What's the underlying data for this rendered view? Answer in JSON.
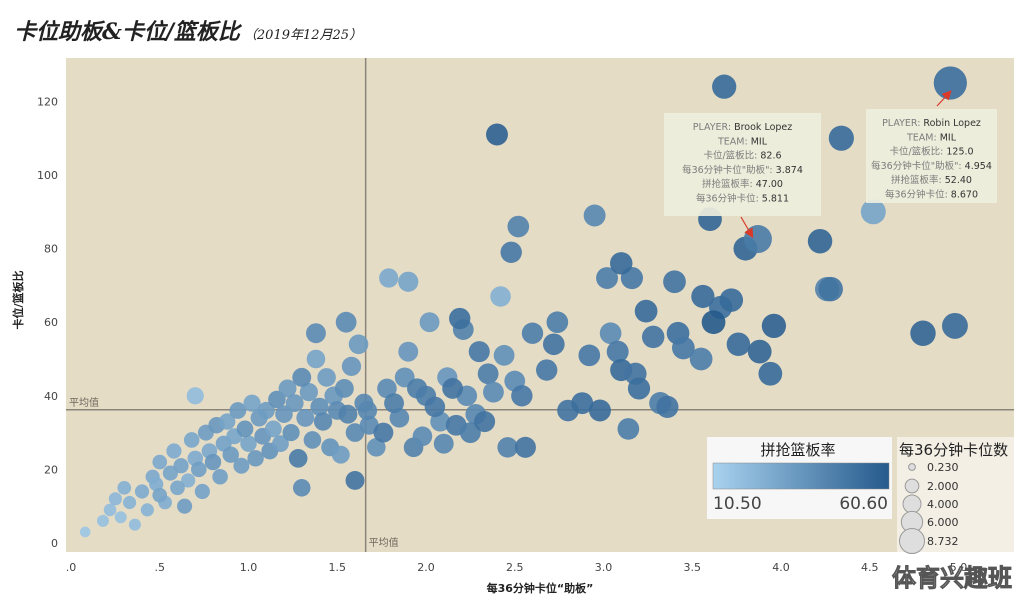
{
  "title": "卡位助板&卡位/篮板比",
  "subtitle": "（2019年12月25）",
  "watermark": "体育兴趣班",
  "chart_data": {
    "type": "scatter",
    "xlabel": "每36分钟卡位“助板”",
    "ylabel": "卡位/篮板比",
    "xlim": [
      0,
      5.2
    ],
    "ylim": [
      -3,
      132
    ],
    "x_ticks": [
      ".0",
      ".5",
      "1.0",
      "1.5",
      "2.0",
      "2.5",
      "3.0",
      "3.5",
      "4.0",
      "4.5",
      "5.0"
    ],
    "x_tick_values": [
      0,
      0.5,
      1.0,
      1.5,
      2.0,
      2.5,
      3.0,
      3.5,
      4.0,
      4.5,
      5.0
    ],
    "y_ticks": [
      0,
      20,
      40,
      60,
      80,
      100,
      120
    ],
    "ref_x": 1.66,
    "ref_y": 36.2,
    "ref_x_label": "平均值",
    "ref_y_label": "平均值",
    "grid": false,
    "color_legend_title": "拼抢篮板率",
    "color_min_label": "10.50",
    "color_max_label": "60.60",
    "size_legend_title": "每36分钟卡位数",
    "size_legend_items": [
      "0.230",
      "2.000",
      "4.000",
      "6.000",
      "8.732"
    ],
    "size_legend_values": [
      0.23,
      2.0,
      4.0,
      6.0,
      8.732
    ],
    "colors": {
      "background": "#e5dcc6",
      "low": "#a9d2ee",
      "high": "#255a8c",
      "arrow": "#d93a2a",
      "refline": "#8a857b"
    },
    "annotations": [
      {
        "lines": [
          [
            "PLAYER: ",
            "Brook Lopez"
          ],
          [
            "TEAM: ",
            "MIL"
          ],
          [
            "卡位/篮板比: ",
            "82.6"
          ],
          [
            "每36分钟卡位\"助板\": ",
            "3.874"
          ],
          [
            "拼抢篮板率: ",
            "47.00"
          ],
          [
            "每36分钟卡位: ",
            "5.811"
          ]
        ],
        "target": [
          3.87,
          82.6
        ]
      },
      {
        "lines": [
          [
            "PLAYER: ",
            "Robin Lopez"
          ],
          [
            "TEAM: ",
            "MIL"
          ],
          [
            "卡位/篮板比: ",
            "125.0"
          ],
          [
            "每36分钟卡位\"助板\": ",
            "4.954"
          ],
          [
            "拼抢篮板率: ",
            "52.40"
          ],
          [
            "每36分钟卡位: ",
            "8.670"
          ]
        ],
        "target": [
          4.954,
          125.0
        ]
      }
    ],
    "points": [
      [
        0.08,
        3,
        16,
        0.4
      ],
      [
        0.18,
        6,
        18,
        0.6
      ],
      [
        0.22,
        9,
        20,
        0.7
      ],
      [
        0.25,
        12,
        22,
        0.8
      ],
      [
        0.28,
        7,
        18,
        0.6
      ],
      [
        0.3,
        15,
        25,
        0.9
      ],
      [
        0.33,
        11,
        24,
        0.8
      ],
      [
        0.36,
        5,
        20,
        0.6
      ],
      [
        0.4,
        14,
        27,
        1.0
      ],
      [
        0.43,
        9,
        24,
        0.8
      ],
      [
        0.46,
        18,
        28,
        1.0
      ],
      [
        0.48,
        16,
        26,
        1.0
      ],
      [
        0.5,
        13,
        30,
        1.1
      ],
      [
        0.5,
        22,
        28,
        1.1
      ],
      [
        0.53,
        11,
        26,
        0.9
      ],
      [
        0.56,
        19,
        30,
        1.2
      ],
      [
        0.58,
        25,
        27,
        1.2
      ],
      [
        0.6,
        15,
        29,
        1.1
      ],
      [
        0.62,
        21,
        31,
        1.2
      ],
      [
        0.64,
        10,
        33,
        1.2
      ],
      [
        0.66,
        17,
        25,
        1.0
      ],
      [
        0.68,
        28,
        29,
        1.3
      ],
      [
        0.7,
        23,
        27,
        1.3
      ],
      [
        0.7,
        40,
        20,
        1.7
      ],
      [
        0.72,
        20,
        32,
        1.3
      ],
      [
        0.74,
        14,
        31,
        1.2
      ],
      [
        0.76,
        30,
        33,
        1.4
      ],
      [
        0.78,
        25,
        28,
        1.3
      ],
      [
        0.8,
        22,
        36,
        1.5
      ],
      [
        0.82,
        32,
        35,
        1.5
      ],
      [
        0.84,
        18,
        32,
        1.3
      ],
      [
        0.86,
        27,
        31,
        1.4
      ],
      [
        0.88,
        33,
        30,
        1.5
      ],
      [
        0.9,
        24,
        34,
        1.5
      ],
      [
        0.92,
        29,
        29,
        1.4
      ],
      [
        0.94,
        36,
        34,
        1.6
      ],
      [
        0.96,
        21,
        33,
        1.4
      ],
      [
        0.98,
        31,
        37,
        1.6
      ],
      [
        1.0,
        27,
        30,
        1.5
      ],
      [
        1.02,
        38,
        30,
        1.7
      ],
      [
        1.04,
        23,
        35,
        1.5
      ],
      [
        1.06,
        34,
        34,
        1.7
      ],
      [
        1.08,
        29,
        36,
        1.6
      ],
      [
        1.1,
        36,
        33,
        1.7
      ],
      [
        1.12,
        25,
        37,
        1.6
      ],
      [
        1.14,
        31,
        30,
        1.6
      ],
      [
        1.16,
        39,
        38,
        1.8
      ],
      [
        1.18,
        27,
        32,
        1.6
      ],
      [
        1.2,
        35,
        36,
        1.8
      ],
      [
        1.22,
        42,
        34,
        1.9
      ],
      [
        1.24,
        30,
        38,
        1.7
      ],
      [
        1.26,
        38,
        35,
        1.9
      ],
      [
        1.28,
        23,
        47,
        2.1
      ],
      [
        1.3,
        45,
        40,
        2.2
      ],
      [
        1.3,
        15,
        40,
        1.8
      ],
      [
        1.32,
        34,
        36,
        1.9
      ],
      [
        1.34,
        41,
        34,
        2.0
      ],
      [
        1.36,
        28,
        38,
        1.8
      ],
      [
        1.38,
        50,
        30,
        2.1
      ],
      [
        1.38,
        57,
        40,
        2.5
      ],
      [
        1.4,
        37,
        38,
        2.0
      ],
      [
        1.42,
        33,
        42,
        2.0
      ],
      [
        1.44,
        45,
        33,
        2.1
      ],
      [
        1.46,
        26,
        37,
        1.9
      ],
      [
        1.48,
        40,
        35,
        2.1
      ],
      [
        1.5,
        36,
        40,
        2.1
      ],
      [
        1.52,
        24,
        33,
        1.9
      ],
      [
        1.54,
        42,
        39,
        2.2
      ],
      [
        1.55,
        60,
        40,
        2.8
      ],
      [
        1.56,
        35,
        44,
        2.2
      ],
      [
        1.58,
        48,
        36,
        2.3
      ],
      [
        1.6,
        30,
        41,
        2.1
      ],
      [
        1.6,
        17,
        50,
        2.2
      ],
      [
        1.62,
        54,
        34,
        2.4
      ],
      [
        1.65,
        38,
        42,
        2.2
      ],
      [
        1.67,
        36,
        42,
        2.3
      ],
      [
        1.68,
        32,
        40,
        2.2
      ],
      [
        1.72,
        26,
        38,
        2.1
      ],
      [
        1.76,
        30,
        48,
        2.5
      ],
      [
        1.78,
        42,
        40,
        2.4
      ],
      [
        1.79,
        72,
        28,
        2.3
      ],
      [
        1.82,
        38,
        46,
        2.5
      ],
      [
        1.85,
        34,
        42,
        2.4
      ],
      [
        1.88,
        45,
        38,
        2.5
      ],
      [
        1.9,
        71,
        30,
        2.6
      ],
      [
        1.9,
        52,
        36,
        2.5
      ],
      [
        1.93,
        26,
        44,
        2.4
      ],
      [
        1.95,
        42,
        46,
        2.6
      ],
      [
        1.98,
        29,
        40,
        2.4
      ],
      [
        2.0,
        40,
        46,
        2.6
      ],
      [
        2.02,
        60,
        34,
        2.5
      ],
      [
        2.05,
        37,
        48,
        2.7
      ],
      [
        2.08,
        33,
        38,
        2.5
      ],
      [
        2.1,
        27,
        42,
        2.5
      ],
      [
        2.12,
        45,
        36,
        2.6
      ],
      [
        2.15,
        42,
        50,
        2.8
      ],
      [
        2.17,
        32,
        48,
        2.8
      ],
      [
        2.19,
        61,
        52,
        3.0
      ],
      [
        2.21,
        58,
        44,
        2.8
      ],
      [
        2.23,
        40,
        40,
        2.7
      ],
      [
        2.25,
        30,
        46,
        2.8
      ],
      [
        2.28,
        35,
        42,
        2.7
      ],
      [
        2.3,
        52,
        48,
        2.9
      ],
      [
        2.33,
        33,
        50,
        2.9
      ],
      [
        2.35,
        46,
        46,
        2.8
      ],
      [
        2.38,
        41,
        40,
        2.8
      ],
      [
        2.4,
        111,
        58,
        3.2
      ],
      [
        2.42,
        67,
        25,
        2.7
      ],
      [
        2.44,
        51,
        38,
        2.8
      ],
      [
        2.46,
        26,
        44,
        2.7
      ],
      [
        2.48,
        79,
        48,
        3.0
      ],
      [
        2.5,
        44,
        40,
        2.8
      ],
      [
        2.52,
        86,
        44,
        3.1
      ],
      [
        2.54,
        40,
        48,
        3.0
      ],
      [
        2.56,
        26,
        50,
        2.9
      ],
      [
        2.6,
        57,
        46,
        3.0
      ],
      [
        2.68,
        47,
        48,
        3.0
      ],
      [
        2.72,
        54,
        50,
        3.1
      ],
      [
        2.74,
        60,
        46,
        3.1
      ],
      [
        2.8,
        36,
        50,
        3.1
      ],
      [
        2.88,
        38,
        52,
        3.2
      ],
      [
        2.92,
        51,
        48,
        3.1
      ],
      [
        2.95,
        89,
        42,
        3.2
      ],
      [
        2.98,
        36,
        54,
        3.2
      ],
      [
        3.02,
        72,
        46,
        3.2
      ],
      [
        3.04,
        57,
        40,
        3.1
      ],
      [
        3.08,
        52,
        48,
        3.2
      ],
      [
        3.1,
        76,
        54,
        3.4
      ],
      [
        3.1,
        47,
        54,
        3.3
      ],
      [
        3.14,
        31,
        46,
        3.1
      ],
      [
        3.16,
        72,
        48,
        3.3
      ],
      [
        3.18,
        46,
        50,
        3.3
      ],
      [
        3.2,
        42,
        52,
        3.3
      ],
      [
        3.24,
        63,
        54,
        3.5
      ],
      [
        3.28,
        56,
        50,
        3.4
      ],
      [
        3.32,
        38,
        46,
        3.3
      ],
      [
        3.36,
        37,
        50,
        3.3
      ],
      [
        3.4,
        71,
        50,
        3.5
      ],
      [
        3.42,
        57,
        52,
        3.5
      ],
      [
        3.45,
        53,
        48,
        3.5
      ],
      [
        3.55,
        50,
        46,
        3.5
      ],
      [
        3.56,
        67,
        54,
        3.7
      ],
      [
        3.6,
        88,
        56,
        3.9
      ],
      [
        3.62,
        60,
        62,
        3.9
      ],
      [
        3.66,
        64,
        52,
        3.7
      ],
      [
        3.68,
        124,
        54,
        4.1
      ],
      [
        3.72,
        66,
        54,
        3.8
      ],
      [
        3.76,
        54,
        54,
        3.8
      ],
      [
        3.8,
        80,
        56,
        4.0
      ],
      [
        3.87,
        82.6,
        47,
        5.811
      ],
      [
        3.88,
        52,
        56,
        3.9
      ],
      [
        3.94,
        46,
        54,
        3.9
      ],
      [
        3.96,
        59,
        58,
        4.1
      ],
      [
        4.22,
        82,
        56,
        4.2
      ],
      [
        4.26,
        69,
        44,
        4.1
      ],
      [
        4.28,
        69,
        50,
        4.2
      ],
      [
        4.34,
        110,
        54,
        4.5
      ],
      [
        4.52,
        90,
        30,
        4.4
      ],
      [
        4.8,
        57,
        56,
        4.6
      ],
      [
        4.954,
        125,
        52.4,
        8.67
      ],
      [
        4.98,
        59,
        54,
        4.8
      ]
    ]
  }
}
